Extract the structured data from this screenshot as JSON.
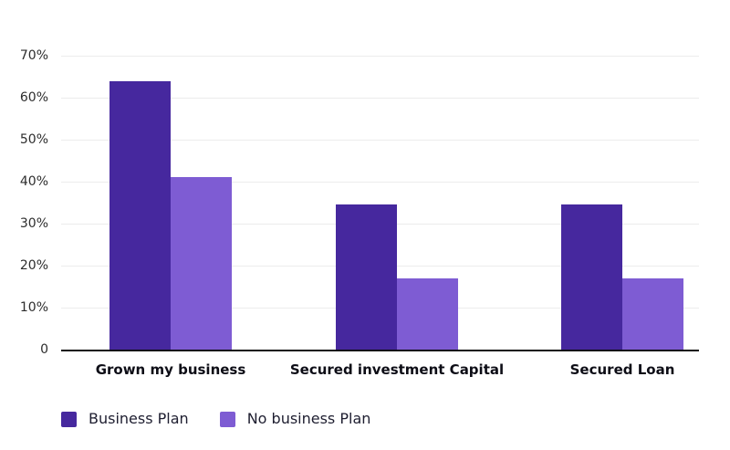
{
  "chart_data": {
    "type": "bar",
    "title": "",
    "xlabel": "",
    "ylabel": "",
    "categories": [
      "Grown my business",
      "Secured investment Capital",
      "Secured Loan"
    ],
    "series": [
      {
        "name": "Business Plan",
        "color": "#46289E",
        "values": [
          64,
          34.5,
          34.5
        ]
      },
      {
        "name": "No business Plan",
        "color": "#7E5CD3",
        "values": [
          41,
          17,
          17
        ]
      }
    ],
    "ylim": [
      0,
      70
    ],
    "yticks": [
      {
        "label": "0",
        "value": 0
      },
      {
        "label": "10%",
        "value": 10
      },
      {
        "label": "20%",
        "value": 20
      },
      {
        "label": "30%",
        "value": 30
      },
      {
        "label": "40%",
        "value": 40
      },
      {
        "label": "50%",
        "value": 50
      },
      {
        "label": "60%",
        "value": 60
      },
      {
        "label": "70%",
        "value": 70
      }
    ],
    "grid": true,
    "legend_position": "bottom-left",
    "colors": {
      "gridline": "#ececec",
      "baseline": "#111111",
      "tick_text": "#2d2d2d",
      "category_text": "#0d0d16",
      "legend_text": "#1e1e30",
      "background": "#ffffff"
    }
  }
}
